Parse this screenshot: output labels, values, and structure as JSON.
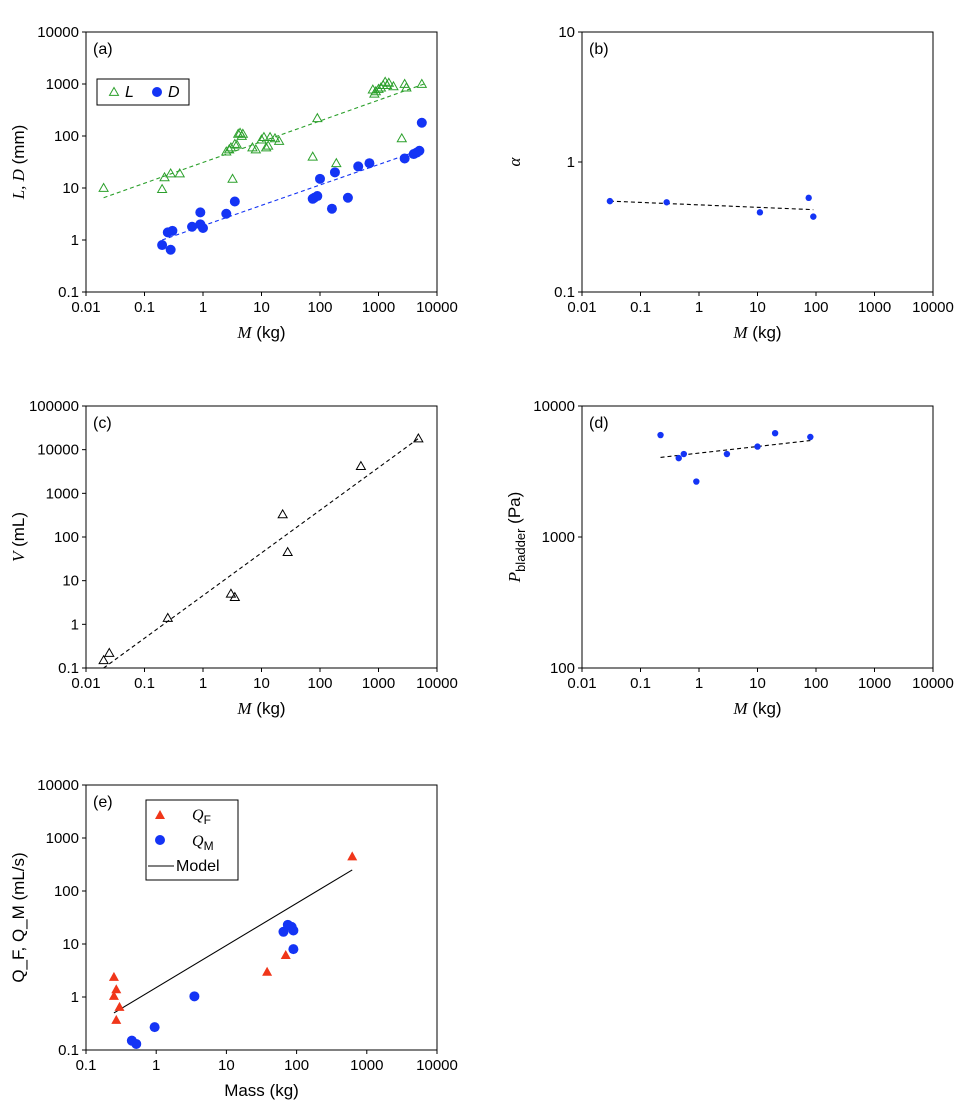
{
  "colors": {
    "green": "#2ca02c",
    "blue": "#1434f5",
    "red": "#f0361a",
    "black": "#000000"
  },
  "chart_data": [
    {
      "panel": "(a)",
      "type": "scatter",
      "xlabel": {
        "sym": "M",
        "unit": " (kg)"
      },
      "ylabel": {
        "sym": "L, D",
        "unit": " (mm)"
      },
      "xlim": [
        0.01,
        10000
      ],
      "ylim": [
        0.1,
        10000
      ],
      "xticks": [
        "0.01",
        "0.1",
        "1",
        "10",
        "100",
        "1000",
        "10000"
      ],
      "yticks": [
        "0.1",
        "1",
        "10",
        "100",
        "1000",
        "10000"
      ],
      "legend": [
        {
          "name": "L",
          "marker": "triangle-open"
        },
        {
          "name": "D",
          "marker": "circle"
        }
      ],
      "series": [
        {
          "name": "L",
          "marker": "triangle-open",
          "color": "#2ca02c",
          "points": [
            [
              0.02,
              10
            ],
            [
              0.2,
              9.5
            ],
            [
              0.22,
              16
            ],
            [
              0.28,
              19
            ],
            [
              0.4,
              19
            ],
            [
              2.5,
              50
            ],
            [
              2.8,
              55
            ],
            [
              3,
              60
            ],
            [
              3.2,
              15
            ],
            [
              3.5,
              70
            ],
            [
              3.8,
              68
            ],
            [
              4,
              110
            ],
            [
              4.3,
              115
            ],
            [
              4.6,
              100
            ],
            [
              4.8,
              110
            ],
            [
              7,
              60
            ],
            [
              8,
              55
            ],
            [
              10,
              85
            ],
            [
              11,
              95
            ],
            [
              12,
              60
            ],
            [
              13,
              65
            ],
            [
              14,
              95
            ],
            [
              17,
              90
            ],
            [
              20,
              80
            ],
            [
              75,
              40
            ],
            [
              90,
              220
            ],
            [
              190,
              30
            ],
            [
              800,
              780
            ],
            [
              850,
              650
            ],
            [
              900,
              720
            ],
            [
              1000,
              800
            ],
            [
              1100,
              850
            ],
            [
              1200,
              950
            ],
            [
              1300,
              1100
            ],
            [
              1400,
              950
            ],
            [
              1500,
              1050
            ],
            [
              1800,
              900
            ],
            [
              2500,
              90
            ],
            [
              2800,
              1000
            ],
            [
              3000,
              850
            ],
            [
              5500,
              1000
            ]
          ]
        },
        {
          "name": "D",
          "marker": "circle",
          "color": "#1434f5",
          "points": [
            [
              0.2,
              0.8
            ],
            [
              0.25,
              1.4
            ],
            [
              0.28,
              0.65
            ],
            [
              0.3,
              1.5
            ],
            [
              0.65,
              1.8
            ],
            [
              0.9,
              3.4
            ],
            [
              0.9,
              2.0
            ],
            [
              1,
              1.7
            ],
            [
              2.5,
              3.2
            ],
            [
              3.5,
              5.5
            ],
            [
              75,
              6.2
            ],
            [
              80,
              6.5
            ],
            [
              90,
              7
            ],
            [
              100,
              15
            ],
            [
              160,
              4
            ],
            [
              180,
              20
            ],
            [
              300,
              6.5
            ],
            [
              450,
              26
            ],
            [
              700,
              30
            ],
            [
              2800,
              37
            ],
            [
              4000,
              45
            ],
            [
              4500,
              48
            ],
            [
              5000,
              52
            ],
            [
              5500,
              180
            ]
          ]
        }
      ],
      "fits": [
        {
          "name": "L",
          "color": "#2ca02c",
          "from": [
            0.02,
            6.5
          ],
          "to": [
            6000,
            1000
          ]
        },
        {
          "name": "D",
          "color": "#1434f5",
          "from": [
            0.2,
            1.0
          ],
          "to": [
            5500,
            55
          ]
        }
      ]
    },
    {
      "panel": "(b)",
      "type": "scatter",
      "xlabel": {
        "sym": "M",
        "unit": " (kg)"
      },
      "ylabel": {
        "sym": "α",
        "unit": ""
      },
      "xlim": [
        0.01,
        10000
      ],
      "ylim": [
        0.1,
        10
      ],
      "xticks": [
        "0.01",
        "0.1",
        "1",
        "10",
        "100",
        "1000",
        "10000"
      ],
      "yticks": [
        "0.1",
        "1",
        "10"
      ],
      "series": [
        {
          "name": "α",
          "marker": "circle-small",
          "color": "#1434f5",
          "points": [
            [
              0.03,
              0.5
            ],
            [
              0.28,
              0.49
            ],
            [
              11,
              0.41
            ],
            [
              75,
              0.53
            ],
            [
              90,
              0.38
            ]
          ]
        }
      ],
      "fits": [
        {
          "name": "α",
          "color": "#000000",
          "from": [
            0.03,
            0.5
          ],
          "to": [
            90,
            0.43
          ]
        }
      ]
    },
    {
      "panel": "(c)",
      "type": "scatter",
      "xlabel": {
        "sym": "M",
        "unit": " (kg)"
      },
      "ylabel": {
        "sym": "V",
        "unit": " (mL)"
      },
      "xlim": [
        0.01,
        10000
      ],
      "ylim": [
        0.1,
        100000
      ],
      "xticks": [
        "0.01",
        "0.1",
        "1",
        "10",
        "100",
        "1000",
        "10000"
      ],
      "yticks": [
        "0.1",
        "1",
        "10",
        "100",
        "1000",
        "10000",
        "100000"
      ],
      "series": [
        {
          "name": "V",
          "marker": "triangle-open",
          "color": "#000000",
          "points": [
            [
              0.02,
              0.15
            ],
            [
              0.025,
              0.22
            ],
            [
              0.25,
              1.4
            ],
            [
              3,
              5
            ],
            [
              3.5,
              4.2
            ],
            [
              23,
              330
            ],
            [
              28,
              45
            ],
            [
              500,
              4200
            ],
            [
              4800,
              18000
            ]
          ]
        }
      ],
      "fits": [
        {
          "name": "V",
          "color": "#000000",
          "from": [
            0.02,
            0.1
          ],
          "to": [
            4800,
            18000
          ]
        }
      ]
    },
    {
      "panel": "(d)",
      "type": "scatter",
      "xlabel": {
        "sym": "M",
        "unit": " (kg)"
      },
      "ylabel": {
        "sym": "P",
        "sub": "bladder",
        "unit": " (Pa)"
      },
      "xlim": [
        0.01,
        10000
      ],
      "ylim": [
        100,
        10000
      ],
      "xticks": [
        "0.01",
        "0.1",
        "1",
        "10",
        "100",
        "1000",
        "10000"
      ],
      "yticks": [
        "100",
        "1000",
        "10000"
      ],
      "series": [
        {
          "name": "P_bladder",
          "marker": "circle-small",
          "color": "#1434f5",
          "points": [
            [
              0.22,
              6000
            ],
            [
              0.45,
              4000
            ],
            [
              0.55,
              4300
            ],
            [
              0.9,
              2650
            ],
            [
              3,
              4300
            ],
            [
              10,
              4900
            ],
            [
              20,
              6200
            ],
            [
              80,
              5800
            ]
          ]
        }
      ],
      "fits": [
        {
          "name": "P_bladder",
          "color": "#000000",
          "from": [
            0.22,
            4050
          ],
          "to": [
            80,
            5450
          ]
        }
      ]
    },
    {
      "panel": "(e)",
      "type": "scatter",
      "xlabel": {
        "text": "Mass (kg)"
      },
      "ylabel": {
        "text": "Q_F, Q_M (mL/s)"
      },
      "xlim": [
        0.1,
        10000
      ],
      "ylim": [
        0.1,
        10000
      ],
      "xticks": [
        "0.1",
        "1",
        "10",
        "100",
        "1000",
        "10000"
      ],
      "yticks": [
        "0.1",
        "1",
        "10",
        "100",
        "1000",
        "10000"
      ],
      "legend": [
        {
          "name": "Q",
          "sub": "F",
          "marker": "triangle-filled"
        },
        {
          "name": "Q",
          "sub": "M",
          "marker": "circle"
        },
        {
          "name": "Model",
          "marker": "line"
        }
      ],
      "series": [
        {
          "name": "Q_F",
          "marker": "triangle-filled",
          "color": "#f0361a",
          "points": [
            [
              0.25,
              2.4
            ],
            [
              0.25,
              1.05
            ],
            [
              0.27,
              1.4
            ],
            [
              0.3,
              0.65
            ],
            [
              0.27,
              0.37
            ],
            [
              38,
              3
            ],
            [
              70,
              6.2
            ],
            [
              620,
              450
            ]
          ]
        },
        {
          "name": "Q_M",
          "marker": "circle",
          "color": "#1434f5",
          "points": [
            [
              0.45,
              0.15
            ],
            [
              0.52,
              0.13
            ],
            [
              0.95,
              0.27
            ],
            [
              3.5,
              1.03
            ],
            [
              65,
              17
            ],
            [
              75,
              23
            ],
            [
              85,
              21
            ],
            [
              90,
              18
            ],
            [
              90,
              8
            ]
          ]
        }
      ],
      "fits": [
        {
          "name": "Model",
          "color": "#000000",
          "style": "solid",
          "from": [
            0.25,
            0.5
          ],
          "to": [
            620,
            250
          ]
        }
      ]
    }
  ]
}
